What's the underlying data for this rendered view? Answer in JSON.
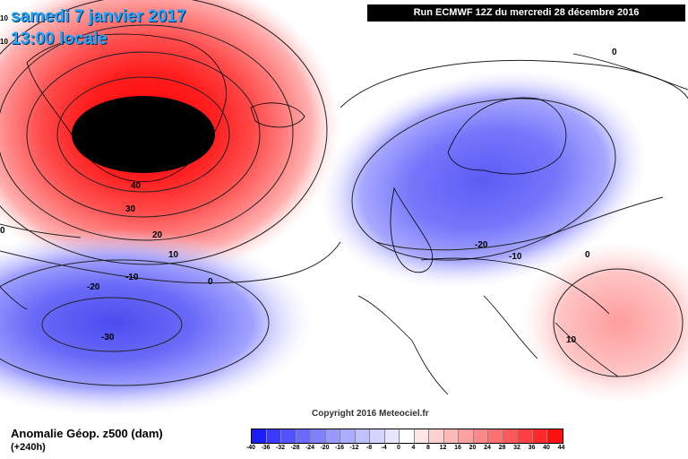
{
  "header": {
    "date_title": "samedi 7 janvier 2017",
    "time_title": "13:00 locale",
    "run_banner": "Run ECMWF 12Z du mercredi 28 décembre 2016",
    "edge_labels": [
      "10",
      "10"
    ]
  },
  "footer": {
    "variable_title": "Anomalie Géop. z500 (dam)",
    "forecast_step": "(+240h)",
    "copyright": "Copyright 2016 Meteociel.fr"
  },
  "map": {
    "contour_labels": [
      "40",
      "30",
      "20",
      "10",
      "0",
      "-10",
      "-20",
      "-30",
      "0",
      "-20",
      "-10",
      "0",
      "10",
      "0"
    ],
    "feature_names": [
      "positive-anomaly-greenland",
      "negative-anomaly-atlantic",
      "negative-anomaly-scandinavia",
      "positive-anomaly-greece"
    ]
  },
  "colorbar": {
    "ticks": [
      "-40",
      "-36",
      "-32",
      "-28",
      "-24",
      "-20",
      "-16",
      "-12",
      "-8",
      "-4",
      "0",
      "4",
      "8",
      "12",
      "16",
      "20",
      "24",
      "28",
      "32",
      "36",
      "40",
      "44"
    ],
    "colors": [
      "#1c1cff",
      "#3a3aff",
      "#5252ff",
      "#6a6aff",
      "#8080ff",
      "#9898ff",
      "#acacff",
      "#c0c0ff",
      "#d4d4ff",
      "#e6e6ff",
      "#ffffff",
      "#ffe6e6",
      "#ffd0d0",
      "#ffb8b8",
      "#ffa0a0",
      "#ff8888",
      "#ff7070",
      "#ff5858",
      "#ff4040",
      "#ff2828",
      "#ff1010"
    ]
  },
  "colors": {
    "title_blue": "#1ea7ff",
    "banner_bg": "#000000",
    "extreme_core": "#000000"
  }
}
